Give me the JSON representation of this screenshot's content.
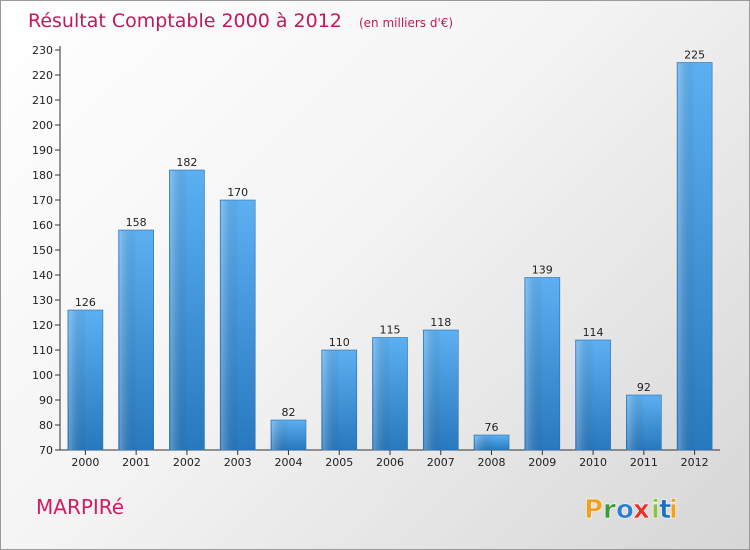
{
  "chart_data": {
    "type": "bar",
    "title": "Résultat Comptable 2000 à 2012",
    "subtitle": "(en milliers d'€)",
    "categories": [
      "2000",
      "2001",
      "2002",
      "2003",
      "2004",
      "2005",
      "2006",
      "2007",
      "2008",
      "2009",
      "2010",
      "2011",
      "2012"
    ],
    "values": [
      126,
      158,
      182,
      170,
      82,
      110,
      115,
      118,
      76,
      139,
      114,
      92,
      225
    ],
    "ylim": [
      70,
      230
    ],
    "ytick_step": 10,
    "grid": false,
    "xlabel": "",
    "ylabel": ""
  },
  "footer": {
    "commune": "MARPIRé",
    "logo_letters": [
      "P",
      "r",
      "o",
      "x",
      "i",
      "t",
      "i"
    ],
    "logo_colors": [
      "#f0a020",
      "#3a9a3a",
      "#2a7fd4",
      "#e8302a",
      "#8bc34a",
      "#1f6fc0",
      "#f0a020"
    ]
  },
  "colors": {
    "title": "#c2185b",
    "bar_light": "#5aaef0",
    "bar_dark": "#2a7fc4"
  }
}
